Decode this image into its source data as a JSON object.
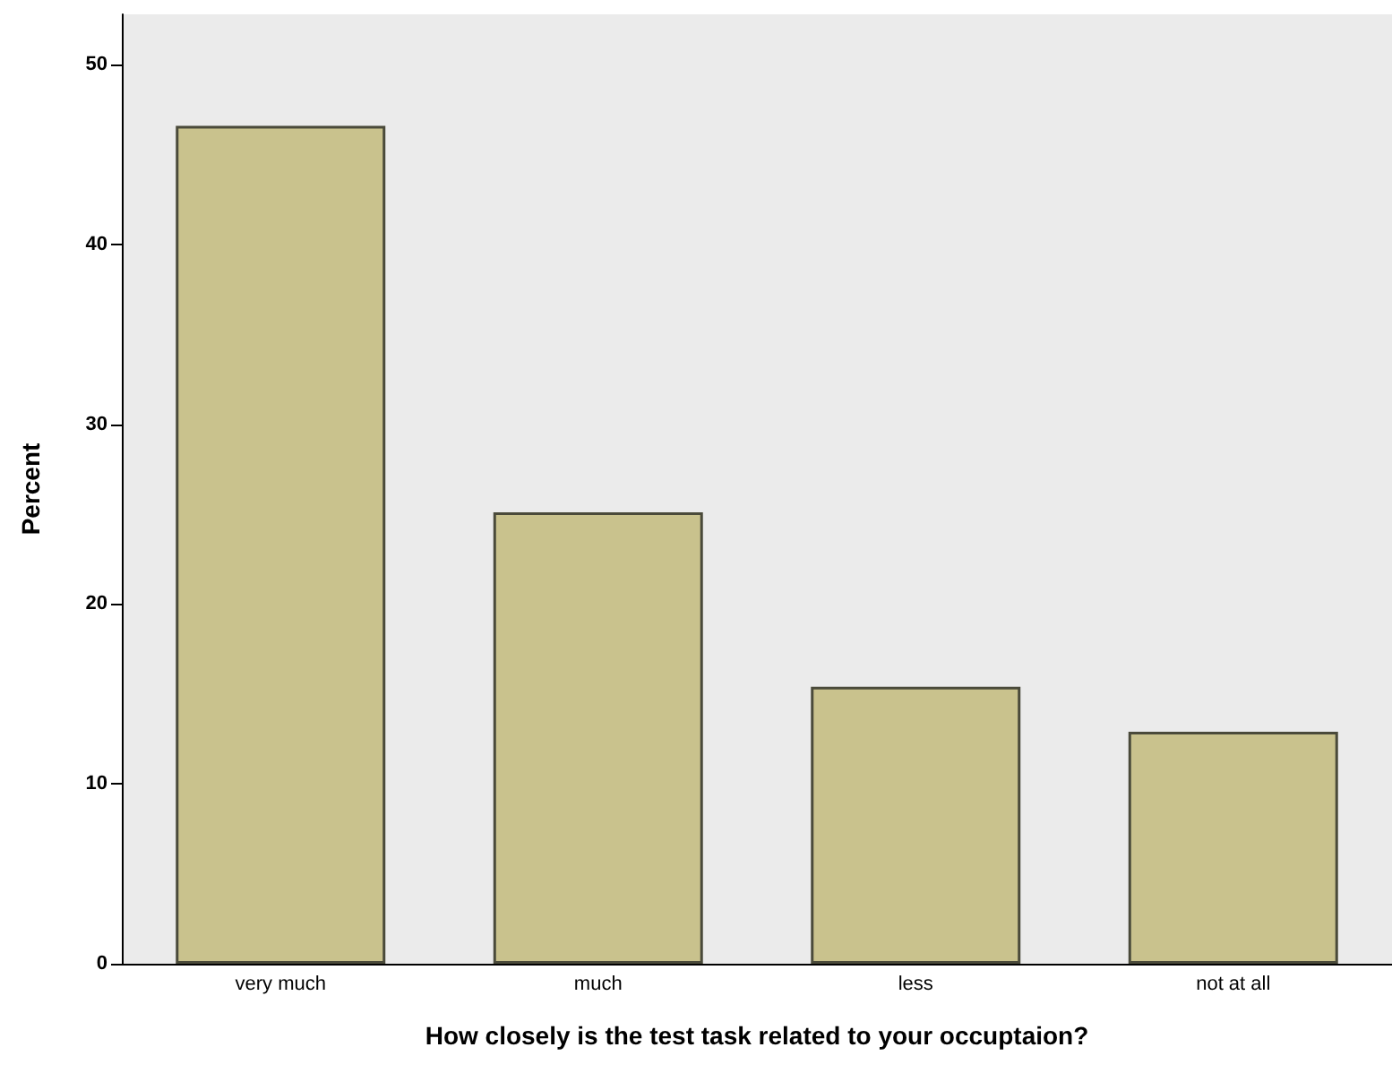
{
  "chart_data": {
    "type": "bar",
    "xlabel": "How closely is the test task related to your occuptaion?",
    "ylabel": "Percent",
    "categories": [
      "very much",
      "much",
      "less",
      "not at all"
    ],
    "values": [
      46.6,
      25.1,
      15.4,
      12.9
    ],
    "color": "#c9c28d",
    "ylim": [
      0,
      52.8
    ],
    "yticks": [
      0,
      10,
      20,
      30,
      40,
      50
    ],
    "grid": false
  }
}
